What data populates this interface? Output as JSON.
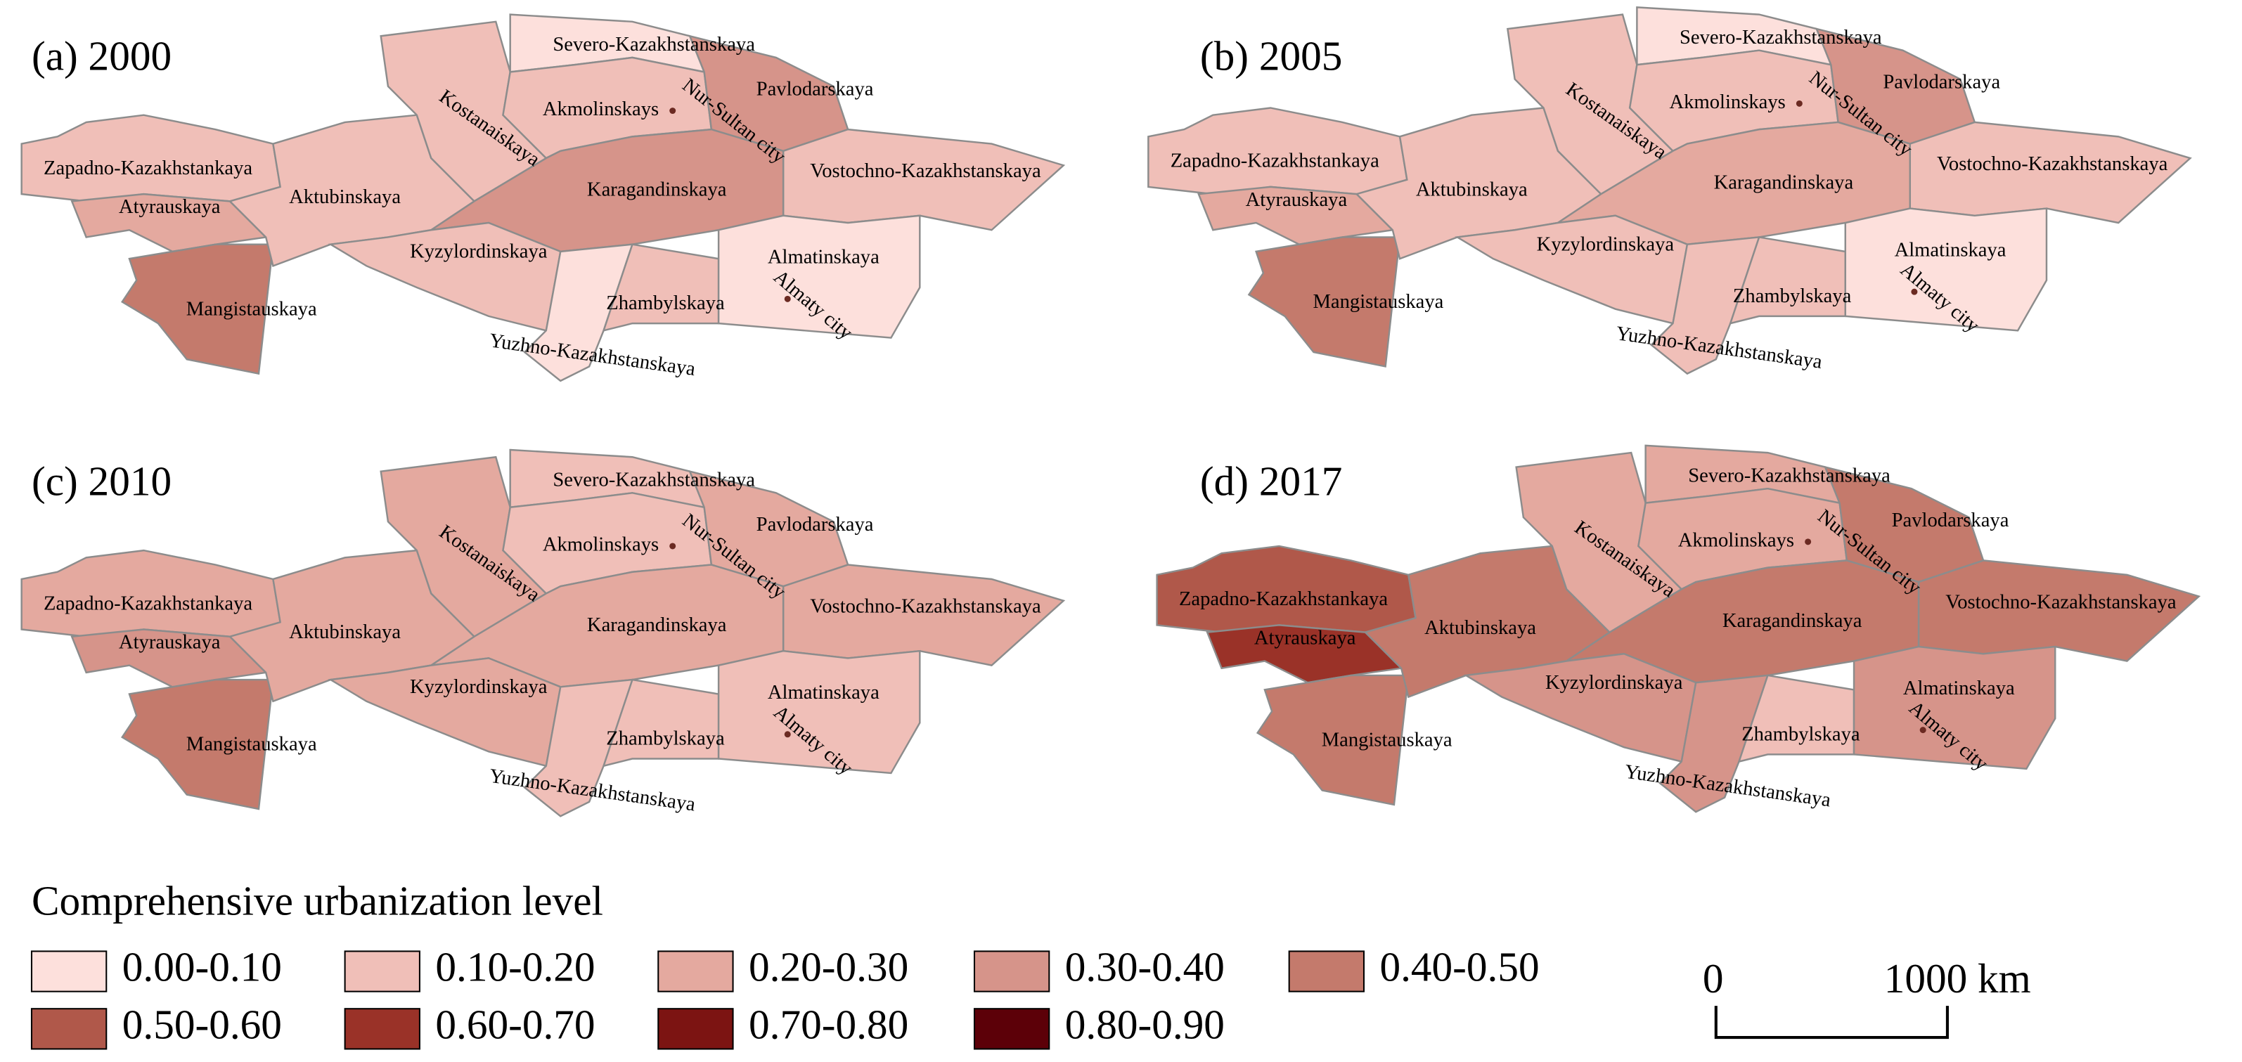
{
  "panels": [
    {
      "title": "(a) 2000",
      "regions": [
        {
          "name": "Zapadno-Kazakhstankaya",
          "color": "#f0bfb8"
        },
        {
          "name": "Atyrauskaya",
          "color": "#e4a99f"
        },
        {
          "name": "Mangistauskaya",
          "color": "#c47a6c"
        },
        {
          "name": "Aktubinskaya",
          "color": "#f0bfb8"
        },
        {
          "name": "Kostanaiskaya",
          "color": "#f0bfb8"
        },
        {
          "name": "Severo-Kazakhstanskaya",
          "color": "#fde0dc"
        },
        {
          "name": "Akmolinskays",
          "color": "#f0bfb8"
        },
        {
          "name": "Pavlodarskaya",
          "color": "#d6948a"
        },
        {
          "name": "Vostochno-Kazakhstanskaya",
          "color": "#f0bfb8"
        },
        {
          "name": "Karagandinskaya",
          "color": "#d6948a"
        },
        {
          "name": "Kyzylordinskaya",
          "color": "#f0bfb8"
        },
        {
          "name": "Yuzhno-Kazakhstanskaya",
          "color": "#fde0dc"
        },
        {
          "name": "Zhambylskaya",
          "color": "#f0bfb8"
        },
        {
          "name": "Almatinskaya",
          "color": "#fde0dc"
        }
      ],
      "cities": [
        "Nur-Sultan city",
        "Almaty city"
      ]
    },
    {
      "title": "(b) 2005",
      "regions": [
        {
          "name": "Zapadno-Kazakhstankaya",
          "color": "#f0bfb8"
        },
        {
          "name": "Atyrauskaya",
          "color": "#e4a99f"
        },
        {
          "name": "Mangistauskaya",
          "color": "#c47a6c"
        },
        {
          "name": "Aktubinskaya",
          "color": "#f0bfb8"
        },
        {
          "name": "Kostanaiskaya",
          "color": "#f0bfb8"
        },
        {
          "name": "Severo-Kazakhstanskaya",
          "color": "#fde0dc"
        },
        {
          "name": "Akmolinskays",
          "color": "#f0bfb8"
        },
        {
          "name": "Pavlodarskaya",
          "color": "#d6948a"
        },
        {
          "name": "Vostochno-Kazakhstanskaya",
          "color": "#f0bfb8"
        },
        {
          "name": "Karagandinskaya",
          "color": "#e4a99f"
        },
        {
          "name": "Kyzylordinskaya",
          "color": "#f0bfb8"
        },
        {
          "name": "Yuzhno-Kazakhstanskaya",
          "color": "#f0bfb8"
        },
        {
          "name": "Zhambylskaya",
          "color": "#f0bfb8"
        },
        {
          "name": "Almatinskaya",
          "color": "#fde0dc"
        }
      ],
      "cities": [
        "Nur-Sultan city",
        "Almaty city"
      ]
    },
    {
      "title": "(c) 2010",
      "regions": [
        {
          "name": "Zapadno-Kazakhstankaya",
          "color": "#e4a99f"
        },
        {
          "name": "Atyrauskaya",
          "color": "#d6948a"
        },
        {
          "name": "Mangistauskaya",
          "color": "#c47a6c"
        },
        {
          "name": "Aktubinskaya",
          "color": "#e4a99f"
        },
        {
          "name": "Kostanaiskaya",
          "color": "#e4a99f"
        },
        {
          "name": "Severo-Kazakhstanskaya",
          "color": "#f0bfb8"
        },
        {
          "name": "Akmolinskays",
          "color": "#f0bfb8"
        },
        {
          "name": "Pavlodarskaya",
          "color": "#e4a99f"
        },
        {
          "name": "Vostochno-Kazakhstanskaya",
          "color": "#e4a99f"
        },
        {
          "name": "Karagandinskaya",
          "color": "#e4a99f"
        },
        {
          "name": "Kyzylordinskaya",
          "color": "#e4a99f"
        },
        {
          "name": "Yuzhno-Kazakhstanskaya",
          "color": "#f0bfb8"
        },
        {
          "name": "Zhambylskaya",
          "color": "#f0bfb8"
        },
        {
          "name": "Almatinskaya",
          "color": "#f0bfb8"
        }
      ],
      "cities": [
        "Nur-Sultan city",
        "Almaty city"
      ]
    },
    {
      "title": "(d) 2017",
      "regions": [
        {
          "name": "Zapadno-Kazakhstankaya",
          "color": "#b0584a"
        },
        {
          "name": "Atyrauskaya",
          "color": "#9a3228"
        },
        {
          "name": "Mangistauskaya",
          "color": "#c47a6c"
        },
        {
          "name": "Aktubinskaya",
          "color": "#c47a6c"
        },
        {
          "name": "Kostanaiskaya",
          "color": "#e4a99f"
        },
        {
          "name": "Severo-Kazakhstanskaya",
          "color": "#e4a99f"
        },
        {
          "name": "Akmolinskays",
          "color": "#e4a99f"
        },
        {
          "name": "Pavlodarskaya",
          "color": "#c47a6c"
        },
        {
          "name": "Vostochno-Kazakhstanskaya",
          "color": "#c47a6c"
        },
        {
          "name": "Karagandinskaya",
          "color": "#c47a6c"
        },
        {
          "name": "Kyzylordinskaya",
          "color": "#d6948a"
        },
        {
          "name": "Yuzhno-Kazakhstanskaya",
          "color": "#d6948a"
        },
        {
          "name": "Zhambylskaya",
          "color": "#f0bfb8"
        },
        {
          "name": "Almatinskaya",
          "color": "#d6948a"
        }
      ],
      "cities": [
        "Nur-Sultan city",
        "Almaty city"
      ]
    }
  ],
  "legend": {
    "title": "Comprehensive urbanization level",
    "items": [
      {
        "label": "0.00-0.10",
        "color": "#fde0dc"
      },
      {
        "label": "0.10-0.20",
        "color": "#f0bfb8"
      },
      {
        "label": "0.20-0.30",
        "color": "#e4a99f"
      },
      {
        "label": "0.30-0.40",
        "color": "#d6948a"
      },
      {
        "label": "0.40-0.50",
        "color": "#c47a6c"
      },
      {
        "label": "0.50-0.60",
        "color": "#b0584a"
      },
      {
        "label": "0.60-0.70",
        "color": "#9a3228"
      },
      {
        "label": "0.70-0.80",
        "color": "#7c1412"
      },
      {
        "label": "0.80-0.90",
        "color": "#5c0008"
      }
    ]
  },
  "scale_bar": {
    "start": "0",
    "end": "1000 km"
  }
}
